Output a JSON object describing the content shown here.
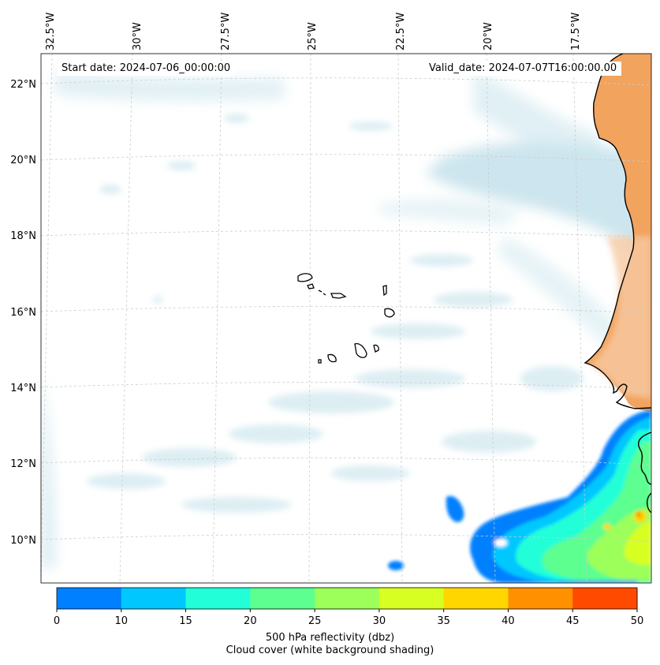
{
  "annotations": {
    "start_date": "Start date: 2024-07-06_00:00:00",
    "valid_date": "Valid_date: 2024-07-07T16:00:00.00"
  },
  "axes": {
    "lon_labels": [
      "32.5°W",
      "30°W",
      "27.5°W",
      "25°W",
      "22.5°W",
      "20°W",
      "17.5°W"
    ],
    "lat_labels": [
      "22°N",
      "20°N",
      "18°N",
      "16°N",
      "14°N",
      "12°N",
      "10°N"
    ]
  },
  "colorbar": {
    "ticks": [
      "0",
      "10",
      "15",
      "20",
      "25",
      "30",
      "35",
      "40",
      "45",
      "50"
    ],
    "colors": [
      "#0080ff",
      "#00c8ff",
      "#22ffd8",
      "#5cff90",
      "#9cff5a",
      "#d8ff22",
      "#ffd600",
      "#ff9000",
      "#ff4a00"
    ],
    "label_line1": "500 hPa reflectivity (dbz)",
    "label_line2": "Cloud cover (white background shading)"
  },
  "colors": {
    "land": "#f2a35e",
    "cloud": "#bcdde8",
    "coast": "#000000",
    "grid": "#cccccc"
  }
}
